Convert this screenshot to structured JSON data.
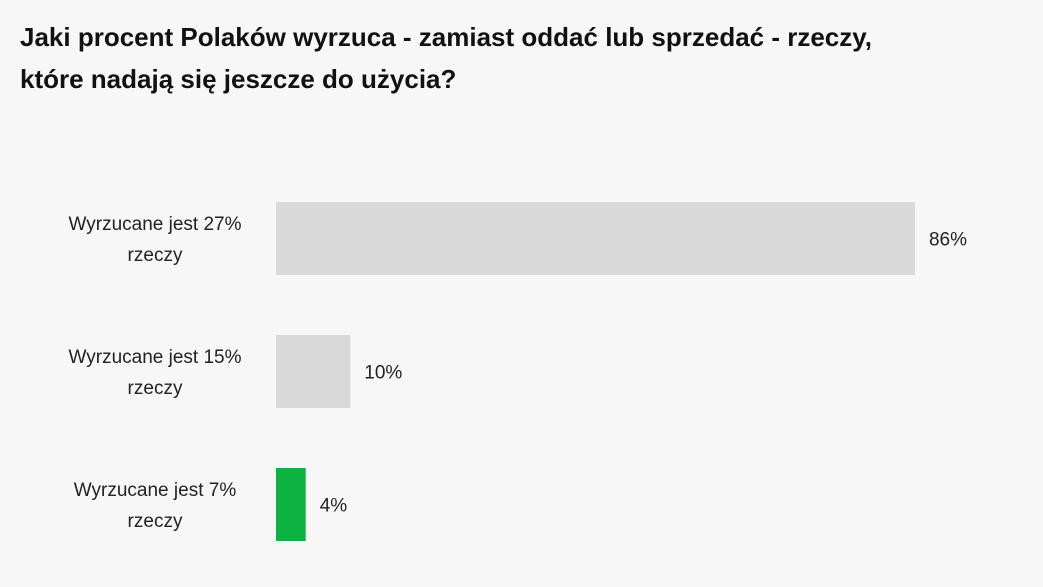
{
  "title_lines": [
    "Jaki procent Polaków wyrzuca - zamiast oddać lub sprzedać - rzeczy,",
    "które nadają się jeszcze do użycia?"
  ],
  "chart_data": {
    "type": "bar",
    "orientation": "horizontal",
    "title": "Jaki procent Polaków wyrzuca - zamiast oddać lub sprzedać - rzeczy, które nadają się jeszcze do użycia?",
    "categories": [
      [
        "Wyrzucane jest 27%",
        "rzeczy"
      ],
      [
        "Wyrzucane jest 15%",
        "rzeczy"
      ],
      [
        "Wyrzucane jest 7%",
        "rzeczy"
      ]
    ],
    "values": [
      86,
      10,
      4
    ],
    "value_labels": [
      "86%",
      "10%",
      "4%"
    ],
    "bar_colors": [
      "#d9d9d9",
      "#d9d9d9",
      "#0db340"
    ],
    "xlim": [
      0,
      100
    ],
    "grid": false,
    "legend": "none"
  }
}
